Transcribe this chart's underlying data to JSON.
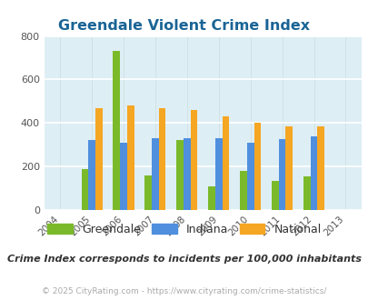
{
  "title": "Greendale Violent Crime Index",
  "years": [
    2005,
    2006,
    2007,
    2008,
    2009,
    2010,
    2011,
    2012
  ],
  "greendale": [
    190,
    730,
    160,
    320,
    110,
    180,
    135,
    155
  ],
  "indiana": [
    320,
    310,
    330,
    330,
    330,
    310,
    325,
    340
  ],
  "national": [
    470,
    480,
    470,
    460,
    430,
    400,
    385,
    385
  ],
  "color_greendale": "#7aba2a",
  "color_indiana": "#4f8fde",
  "color_national": "#f5a623",
  "bg_color": "#deeef5",
  "ylim": [
    0,
    800
  ],
  "yticks": [
    0,
    200,
    400,
    600,
    800
  ],
  "subtitle": "Crime Index corresponds to incidents per 100,000 inhabitants",
  "footer": "© 2025 CityRating.com - https://www.cityrating.com/crime-statistics/",
  "title_color": "#1a6496",
  "subtitle_color": "#333333",
  "footer_color": "#aaaaaa"
}
